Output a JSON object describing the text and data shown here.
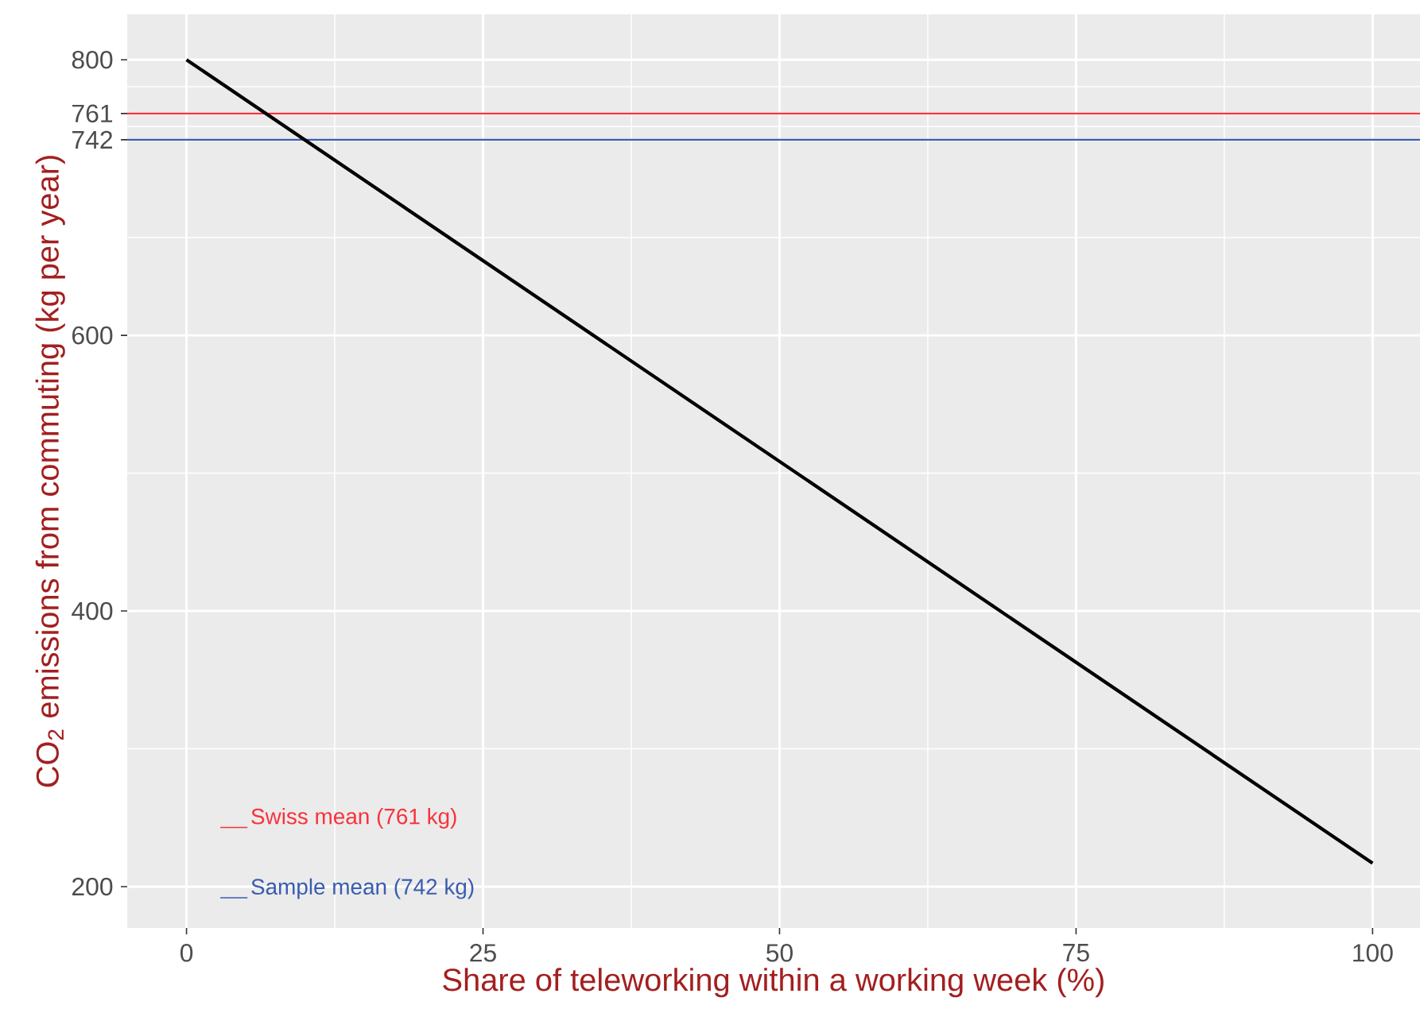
{
  "chart_data": {
    "type": "line",
    "xlabel": "Share of teleworking within a working week (%)",
    "ylabel": "CO$_{2}$ emissions from commuting (kg per year)",
    "x": [
      0,
      100
    ],
    "series": [
      {
        "color": "#000000",
        "values": [
          800,
          217
        ]
      }
    ],
    "xlim": [
      -5,
      104
    ],
    "ylim": [
      170,
      833
    ],
    "xticks": [
      0,
      25,
      50,
      75,
      100
    ],
    "yticks": [
      200,
      400,
      600,
      742,
      761,
      800
    ],
    "grid": true,
    "legend": "bottom left",
    "marker": "none",
    "line_style": "solid",
    "ref_lines": [
      {
        "axis": "y",
        "value": 761,
        "label": "Swiss mean (761 kg)",
        "color": "#f8333c"
      },
      {
        "axis": "y",
        "value": 742,
        "label": "Sample mean (742 kg)",
        "color": "#3a5db0"
      }
    ]
  }
}
